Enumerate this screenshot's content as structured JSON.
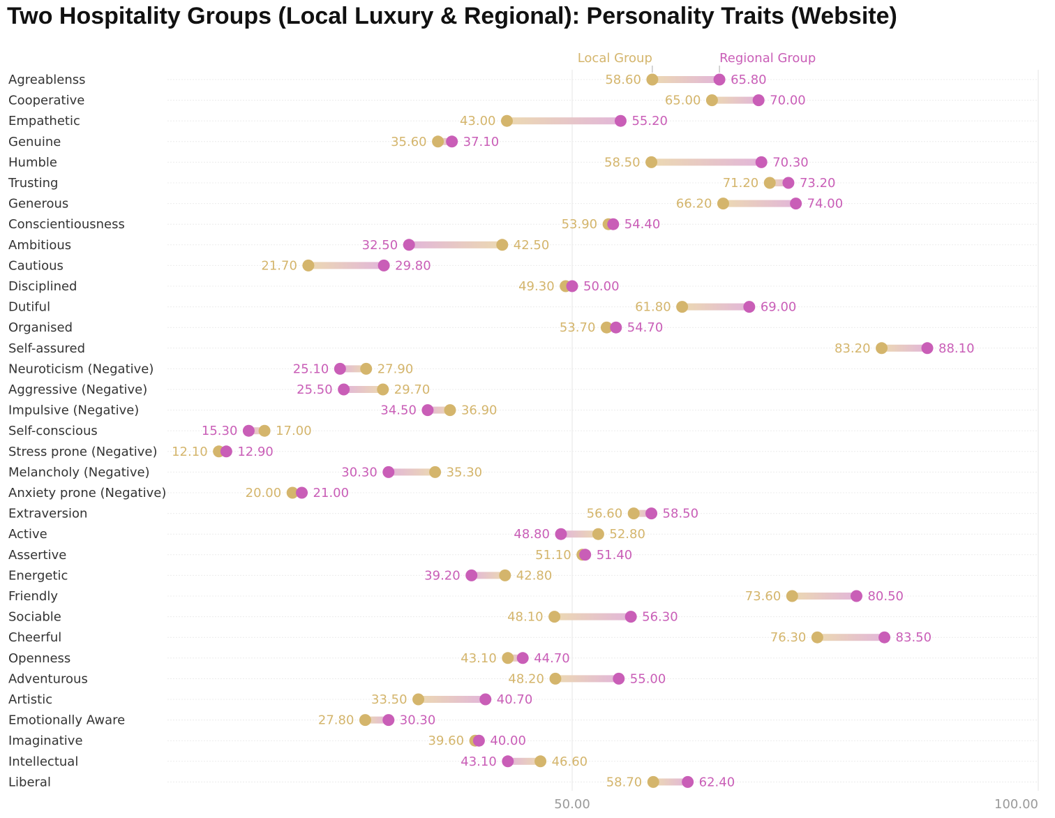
{
  "chart_data": {
    "type": "dumbbell",
    "title": "Two Hospitality Groups (Local Luxury & Regional): Personality Traits (Website)",
    "xlim": [
      0,
      100
    ],
    "x_ticks": [
      "50.00",
      "100.00"
    ],
    "x_tick_values": [
      50,
      100
    ],
    "grid": true,
    "legend": [
      "Local Group",
      "Regional Group"
    ],
    "colors": {
      "local": "#d4b56c",
      "regional": "#c95eb7"
    },
    "categories": [
      "Agreablenss",
      "Cooperative",
      "Empathetic",
      "Genuine",
      "Humble",
      "Trusting",
      "Generous",
      "Conscientiousness",
      "Ambitious",
      "Cautious",
      "Disciplined",
      "Dutiful",
      "Organised",
      "Self-assured",
      "Neuroticism (Negative)",
      "Aggressive (Negative)",
      "Impulsive (Negative)",
      "Self-conscious",
      "Stress prone (Negative)",
      "Melancholy (Negative)",
      "Anxiety prone (Negative)",
      "Extraversion",
      "Active",
      "Assertive",
      "Energetic",
      "Friendly",
      "Sociable",
      "Cheerful",
      "Openness",
      "Adventurous",
      "Artistic",
      "Emotionally Aware",
      "Imaginative",
      "Intellectual",
      "Liberal"
    ],
    "series": [
      {
        "name": "Local Group",
        "values": [
          58.6,
          65.0,
          43.0,
          35.6,
          58.5,
          71.2,
          66.2,
          53.9,
          42.5,
          21.7,
          49.3,
          61.8,
          53.7,
          83.2,
          27.9,
          29.7,
          36.9,
          17.0,
          12.1,
          35.3,
          20.0,
          56.6,
          52.8,
          51.1,
          42.8,
          73.6,
          48.1,
          76.3,
          43.1,
          48.2,
          33.5,
          27.8,
          39.6,
          46.6,
          58.7
        ]
      },
      {
        "name": "Regional Group",
        "values": [
          65.8,
          70.0,
          55.2,
          37.1,
          70.3,
          73.2,
          74.0,
          54.4,
          32.5,
          29.8,
          50.0,
          69.0,
          54.7,
          88.1,
          25.1,
          25.5,
          34.5,
          15.3,
          12.9,
          30.3,
          21.0,
          58.5,
          48.8,
          51.4,
          39.2,
          80.5,
          56.3,
          83.5,
          44.7,
          55.0,
          40.7,
          30.3,
          40.0,
          43.1,
          62.4
        ]
      }
    ],
    "local_labels": [
      "58.60",
      "65.00",
      "43.00",
      "35.60",
      "58.50",
      "71.20",
      "66.20",
      "53.90",
      "42.50",
      "21.70",
      "49.30",
      "61.80",
      "53.70",
      "83.20",
      "27.90",
      "29.70",
      "36.90",
      "17.00",
      "12.10",
      "35.30",
      "20.00",
      "56.60",
      "52.80",
      "51.10",
      "42.80",
      "73.60",
      "48.10",
      "76.30",
      "43.10",
      "48.20",
      "33.50",
      "27.80",
      "39.60",
      "46.60",
      "58.70"
    ],
    "regional_labels": [
      "65.80",
      "70.00",
      "55.20",
      "37.10",
      "70.30",
      "73.20",
      "74.00",
      "54.40",
      "32.50",
      "29.80",
      "50.00",
      "69.00",
      "54.70",
      "88.10",
      "25.10",
      "25.50",
      "34.50",
      "15.30",
      "12.90",
      "30.30",
      "21.00",
      "58.50",
      "48.80",
      "51.40",
      "39.20",
      "80.50",
      "56.30",
      "83.50",
      "44.70",
      "55.00",
      "40.70",
      "30.30",
      "40.00",
      "43.10",
      "62.40"
    ]
  }
}
